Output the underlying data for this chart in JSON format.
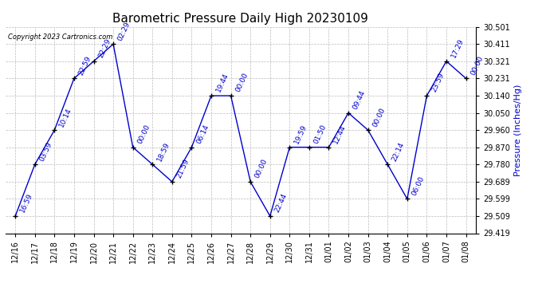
{
  "title": "Barometric Pressure Daily High 20230109",
  "ylabel": "Pressure (Inches/Hg)",
  "copyright": "Copyright 2023 Cartronics.com",
  "background_color": "#ffffff",
  "line_color": "#0000cc",
  "marker_color": "#000000",
  "grid_color": "#bbbbbb",
  "ylim": [
    29.419,
    30.501
  ],
  "yticks": [
    29.419,
    29.509,
    29.599,
    29.689,
    29.78,
    29.87,
    29.96,
    30.05,
    30.14,
    30.231,
    30.321,
    30.411,
    30.501
  ],
  "dates": [
    "12/16",
    "12/17",
    "12/18",
    "12/19",
    "12/20",
    "12/21",
    "12/22",
    "12/23",
    "12/24",
    "12/25",
    "12/26",
    "12/27",
    "12/28",
    "12/29",
    "12/30",
    "12/31",
    "01/01",
    "01/02",
    "01/03",
    "01/04",
    "01/05",
    "01/06",
    "01/07",
    "01/08"
  ],
  "x_indices": [
    0,
    1,
    2,
    3,
    4,
    5,
    6,
    7,
    8,
    9,
    10,
    11,
    12,
    13,
    14,
    15,
    16,
    17,
    18,
    19,
    20,
    21,
    22,
    23
  ],
  "values": [
    29.509,
    29.78,
    29.96,
    30.231,
    30.321,
    30.411,
    29.87,
    29.78,
    29.689,
    29.87,
    30.14,
    30.14,
    29.689,
    29.509,
    29.87,
    29.87,
    29.87,
    30.05,
    29.96,
    29.78,
    29.599,
    30.14,
    30.321,
    30.231
  ],
  "annotations": [
    "16:59",
    "03:59",
    "10:14",
    "22:59",
    "22:29",
    "02:29",
    "00:00",
    "18:59",
    "21:59",
    "06:14",
    "19:44",
    "00:00",
    "00:00",
    "22:44",
    "19:59",
    "01:50",
    "12:44",
    "09:44",
    "00:00",
    "22:14",
    "06:00",
    "23:59",
    "17:29",
    "00:00"
  ],
  "title_fontsize": 11,
  "label_fontsize": 8,
  "tick_fontsize": 7,
  "annotation_fontsize": 6.5,
  "fig_width": 6.9,
  "fig_height": 3.75,
  "fig_dpi": 100
}
